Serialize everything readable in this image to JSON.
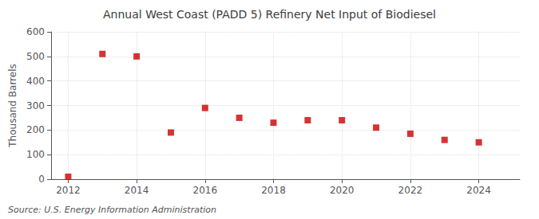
{
  "chart_data": {
    "type": "scatter",
    "title": "Annual West Coast (PADD 5) Refinery Net Input of Biodiesel",
    "ylabel": "Thousand Barrels",
    "annotation": "Source: U.S. Energy Information Administration",
    "x": [
      2012,
      2013,
      2014,
      2015,
      2016,
      2017,
      2018,
      2019,
      2020,
      2021,
      2022,
      2023,
      2024
    ],
    "values": [
      10,
      510,
      500,
      190,
      290,
      250,
      230,
      240,
      240,
      210,
      185,
      160,
      150
    ],
    "color": "#cc0000",
    "marker": "square",
    "xlim": [
      2011.5,
      2025.2
    ],
    "xticks": [
      2012,
      2014,
      2016,
      2018,
      2020,
      2022,
      2024
    ],
    "ylim": [
      0,
      600
    ],
    "yticks": [
      0,
      100,
      200,
      300,
      400,
      500,
      600
    ],
    "grid": true
  }
}
